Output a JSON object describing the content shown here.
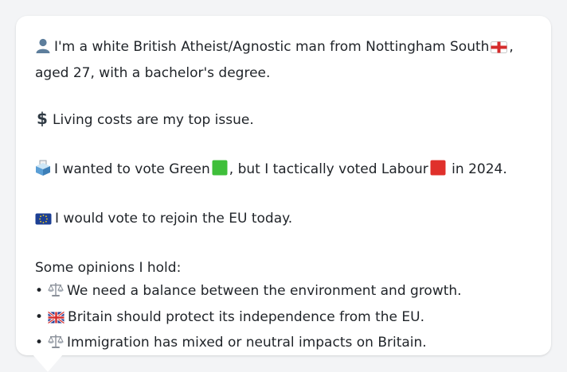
{
  "profile": {
    "intro_a": "I'm a white British Atheist/Agnostic man from Nottingham South",
    "intro_b": ", aged 27, with a bachelor's degree.",
    "issue": "Living costs are my top issue.",
    "vote_a": "I wanted to vote Green",
    "vote_b": ", but I tactically voted Labour",
    "vote_c": "in 2024.",
    "eu": "I would vote to rejoin the EU today.",
    "opinions_heading": "Some opinions I hold:",
    "opinions": [
      {
        "icon": "scales-icon",
        "text": "We need a balance between the environment and growth."
      },
      {
        "icon": "uk-flag-icon",
        "text": "Britain should protect its independence from the EU."
      },
      {
        "icon": "scales-icon",
        "text": "Immigration has mixed or neutral impacts on Britain."
      }
    ],
    "bullet": "•"
  },
  "icons": {
    "person": "person-icon",
    "england_flag": "england-flag-icon",
    "money": "dollar-icon",
    "ballot": "ballot-box-icon",
    "green_square": "green-square-icon",
    "red_square": "red-square-icon",
    "eu_flag": "eu-flag-icon",
    "scales": "scales-icon",
    "uk_flag": "uk-flag-icon"
  },
  "colors": {
    "background": "#f3f4f6",
    "card": "#ffffff",
    "text": "#1f2328",
    "green": "#3fbf3a",
    "red": "#e0302b",
    "eu_blue": "#1c3f94"
  }
}
